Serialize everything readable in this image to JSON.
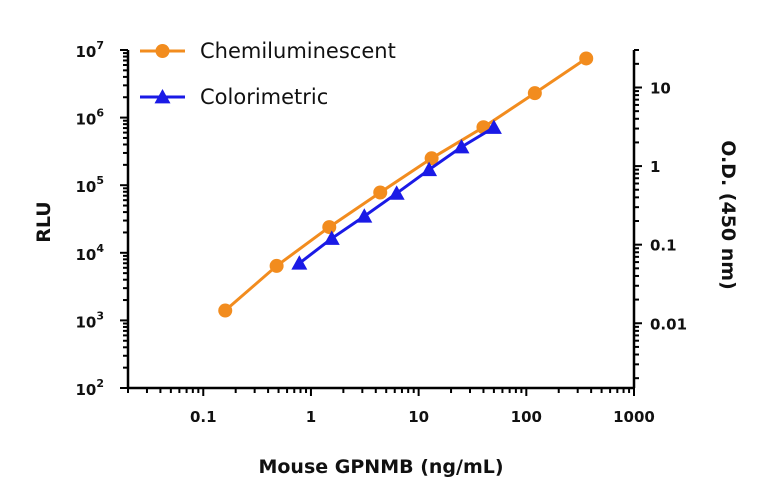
{
  "chart_data": {
    "type": "line",
    "xlabel": "Mouse GPNMB (ng/mL)",
    "ylabel": "RLU",
    "y2label": "O.D. (450 nm)",
    "xscale": "log",
    "yscale": "log",
    "y2scale": "log",
    "xlim": [
      0.02,
      1000
    ],
    "ylim": [
      100,
      10000000
    ],
    "y2lim": [
      0.0015,
      30
    ],
    "x_ticks": [
      "0.1",
      "1",
      "10",
      "100",
      "1000"
    ],
    "y_ticks": [
      {
        "base": "10",
        "exp": "2"
      },
      {
        "base": "10",
        "exp": "3"
      },
      {
        "base": "10",
        "exp": "4"
      },
      {
        "base": "10",
        "exp": "5"
      },
      {
        "base": "10",
        "exp": "6"
      },
      {
        "base": "10",
        "exp": "7"
      }
    ],
    "y2_ticks": [
      "0.01",
      "0.1",
      "1",
      "10"
    ],
    "legend_position": "top-left",
    "grid": false,
    "series": [
      {
        "name": "Chemiluminescent",
        "axis": "left",
        "marker": "circle",
        "color": "#F28C1E",
        "x": [
          0.16,
          0.48,
          1.48,
          4.4,
          13.2,
          40,
          120,
          360
        ],
        "y": [
          1400,
          6400,
          24000,
          78000,
          250000,
          720000,
          2300000,
          7500000
        ]
      },
      {
        "name": "Colorimetric",
        "axis": "right",
        "marker": "triangle",
        "color": "#1A1AE6",
        "x": [
          0.78,
          1.56,
          3.13,
          6.25,
          12.5,
          25,
          50
        ],
        "y": [
          0.058,
          0.12,
          0.23,
          0.45,
          0.9,
          1.75,
          3.1
        ]
      }
    ]
  }
}
